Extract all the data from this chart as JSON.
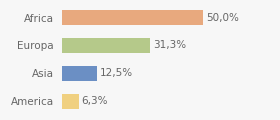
{
  "categories": [
    "Africa",
    "Europa",
    "Asia",
    "America"
  ],
  "values": [
    50.0,
    31.3,
    12.5,
    6.3
  ],
  "labels": [
    "50,0%",
    "31,3%",
    "12,5%",
    "6,3%"
  ],
  "bar_colors": [
    "#e8a97e",
    "#b5c98a",
    "#6b8fc4",
    "#f0d080"
  ],
  "background_color": "#f7f7f7",
  "xlim": [
    0,
    75
  ],
  "label_fontsize": 7.5,
  "category_fontsize": 7.5,
  "bar_height": 0.55
}
